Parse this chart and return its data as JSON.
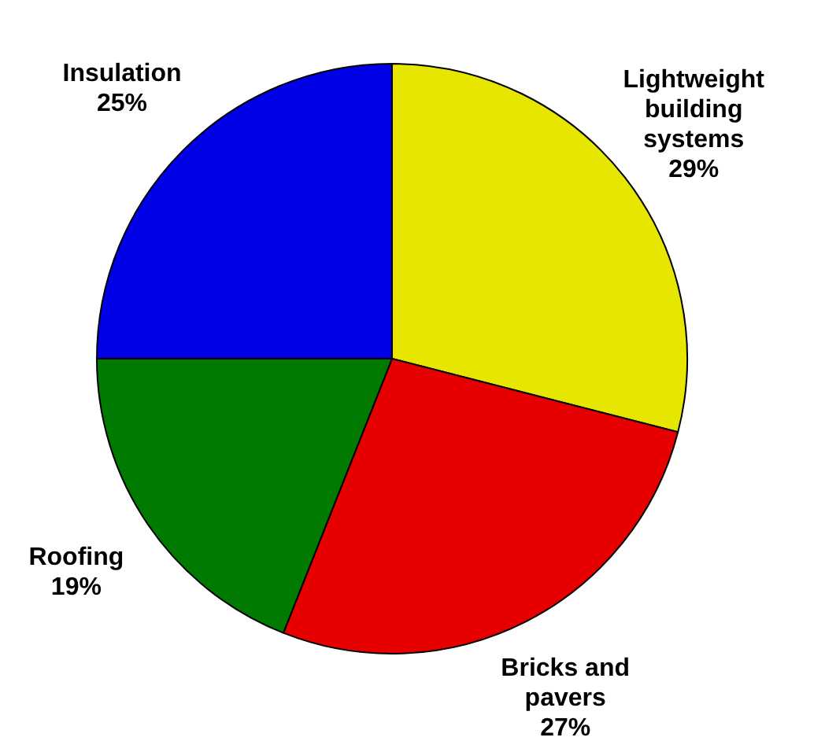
{
  "chart_data": {
    "type": "pie",
    "categories": [
      "Lightweight building systems",
      "Bricks and pavers",
      "Roofing",
      "Insulation"
    ],
    "values": [
      29,
      27,
      19,
      25
    ],
    "colors": [
      "#e6e600",
      "#e60000",
      "#007a00",
      "#0000e6"
    ],
    "value_labels": [
      "29%",
      "27%",
      "19%",
      "25%"
    ],
    "legend": false
  }
}
